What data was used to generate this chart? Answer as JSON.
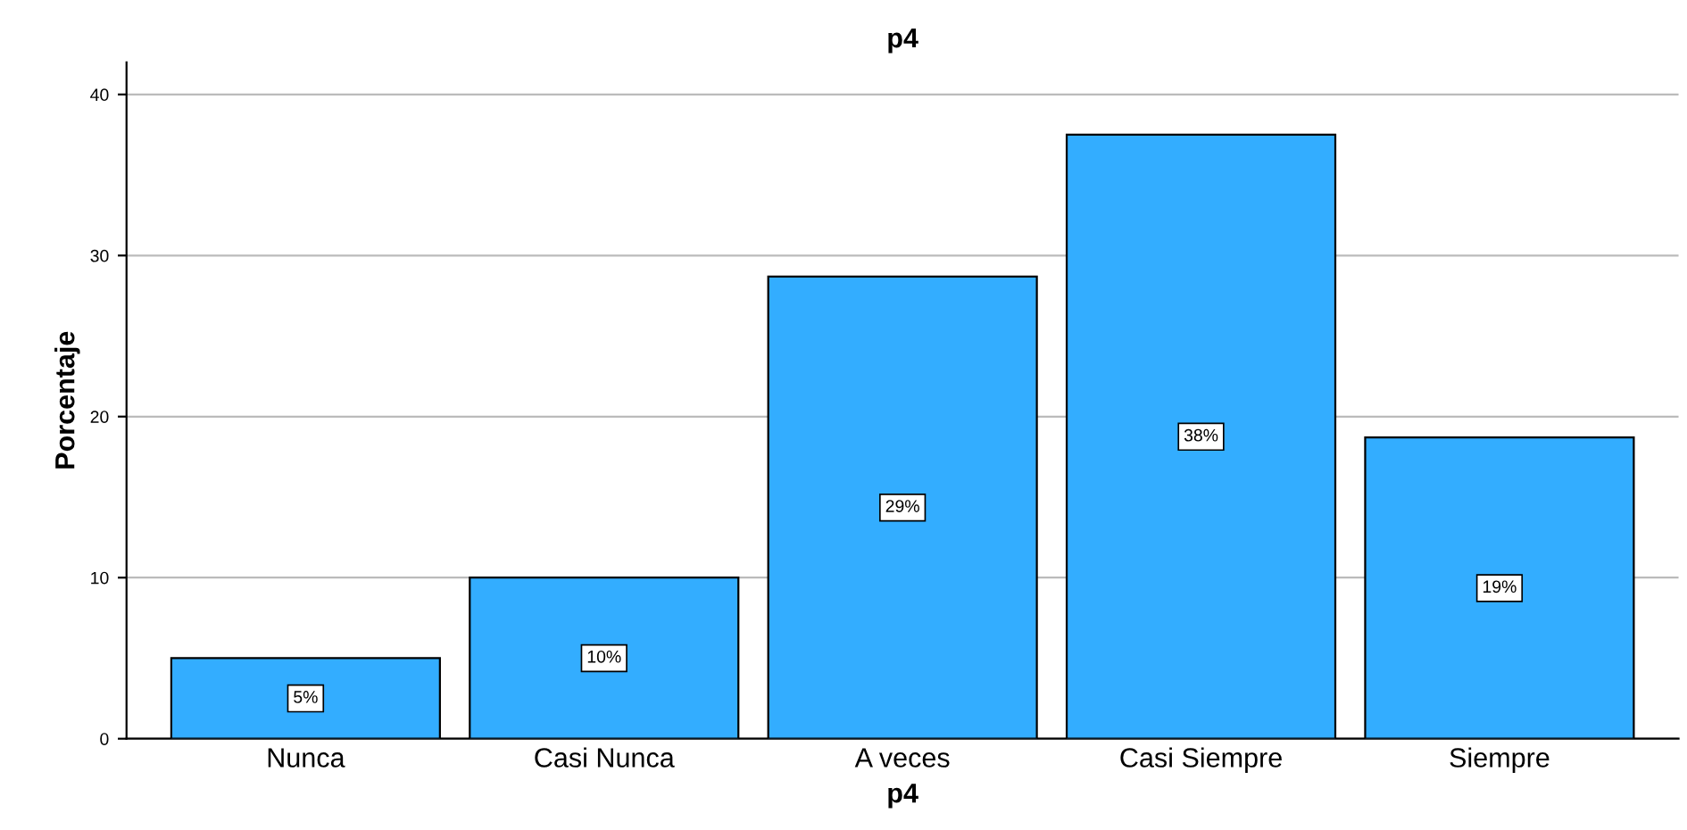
{
  "chart_data": {
    "type": "bar",
    "title": "p4",
    "xlabel": "p4",
    "ylabel": "Porcentaje",
    "categories": [
      "Nunca",
      "Casi Nunca",
      "A veces",
      "Casi Siempre",
      "Siempre"
    ],
    "values": [
      5,
      10,
      28.7,
      37.5,
      18.7
    ],
    "value_labels": [
      "5%",
      "10%",
      "29%",
      "38%",
      "19%"
    ],
    "color": "#33adff",
    "ylim": [
      0,
      42
    ],
    "yticks": [
      0,
      10,
      20,
      30,
      40
    ],
    "grid": "y"
  }
}
